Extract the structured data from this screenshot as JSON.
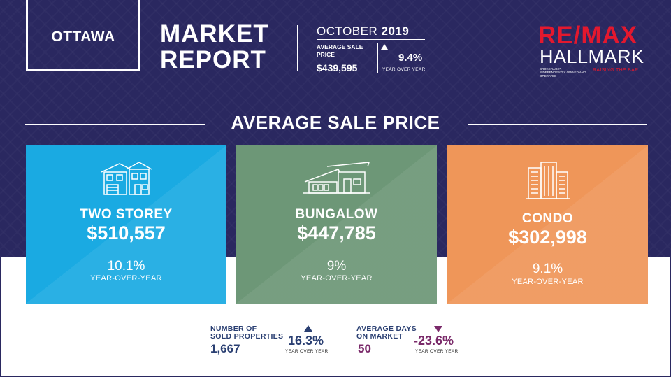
{
  "header": {
    "city": "OTTAWA",
    "title_line1": "MARKET",
    "title_line2": "REPORT",
    "month": "OCTOBER",
    "year": "2019",
    "avg_sale_label_line1": "AVERAGE SALE",
    "avg_sale_label_line2": "PRICE",
    "avg_sale_value": "$439,595",
    "avg_sale_change": "9.4%",
    "avg_sale_change_label": "YEAR OVER YEAR",
    "avg_sale_direction": "up"
  },
  "logo": {
    "brand": "RE/MAX",
    "name": "HALLMARK",
    "fineprint": "BROKERAGE*, INDEPENDENTLY OWNED AND OPERATED",
    "tagline": "RAISING THE BAR"
  },
  "section_title": "AVERAGE SALE PRICE",
  "cards": [
    {
      "type": "TWO STOREY",
      "price": "$510,557",
      "change": "10.1%",
      "yoy": "YEAR-OVER-YEAR",
      "color": "#1aaae2",
      "icon": "two-storey-house-icon"
    },
    {
      "type": "BUNGALOW",
      "price": "$447,785",
      "change": "9%",
      "yoy": "YEAR-OVER-YEAR",
      "color": "#6d9777",
      "icon": "bungalow-icon"
    },
    {
      "type": "CONDO",
      "price": "$302,998",
      "change": "9.1%",
      "yoy": "YEAR-OVER-YEAR",
      "color": "#ef9659",
      "icon": "condo-building-icon"
    }
  ],
  "stats": {
    "sold": {
      "label_line1": "NUMBER OF",
      "label_line2": "SOLD PROPERTIES",
      "value": "1,667",
      "change": "16.3%",
      "yoy": "YEAR OVER YEAR",
      "direction": "up",
      "color": "#2a3f72"
    },
    "days": {
      "label_line1": "AVERAGE DAYS",
      "label_line2": "ON MARKET",
      "value": "50",
      "change": "-23.6%",
      "yoy": "YEAR OVER YEAR",
      "direction": "down",
      "color": "#7a2a6a"
    }
  },
  "colors": {
    "navy": "#2a2860",
    "remax_red": "#e3182e"
  }
}
